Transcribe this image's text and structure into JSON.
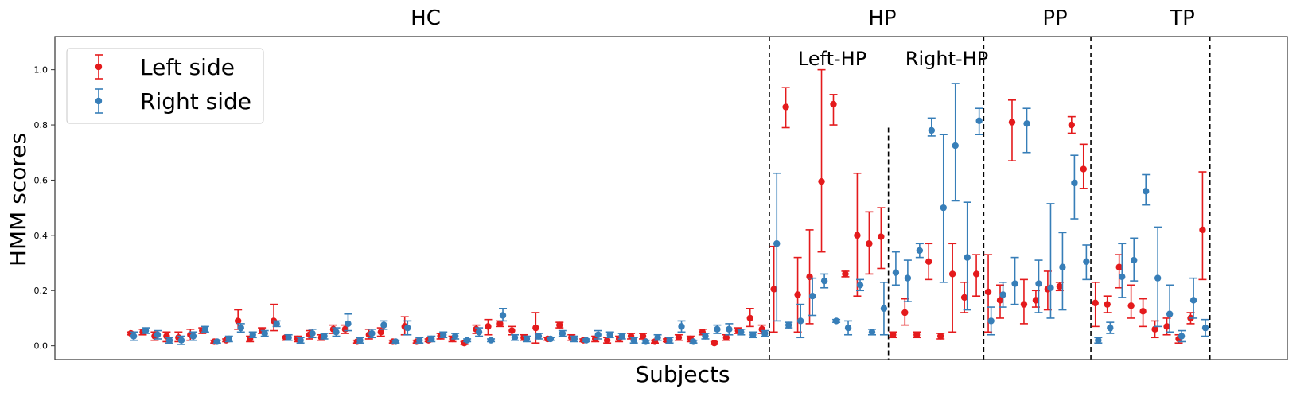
{
  "chart_data": {
    "type": "scatter",
    "title": "",
    "xlabel": "Subjects",
    "ylabel": "HMM scores",
    "ylim": [
      -0.05,
      1.12
    ],
    "yticks": [
      "0.0",
      "0.2",
      "0.4",
      "0.6",
      "0.8",
      "1.0"
    ],
    "grid": false,
    "legend_position": "top-left",
    "group_labels": [
      "HC",
      "HP",
      "PP",
      "TP"
    ],
    "subgroup_labels": [
      "Left-HP",
      "Right-HP"
    ],
    "colors": {
      "left": "#e41a1c",
      "right": "#377eb8"
    },
    "series": [
      {
        "name": "Left side",
        "color": "#e41a1c",
        "points": [
          [
            1,
            0.045,
            0.04,
            0.05
          ],
          [
            2,
            0.05,
            0.04,
            0.06
          ],
          [
            3,
            0.035,
            0.02,
            0.05
          ],
          [
            4,
            0.035,
            0.015,
            0.05
          ],
          [
            5,
            0.03,
            0.015,
            0.05
          ],
          [
            6,
            0.04,
            0.02,
            0.06
          ],
          [
            7,
            0.055,
            0.045,
            0.065
          ],
          [
            8,
            0.015,
            0.01,
            0.02
          ],
          [
            9,
            0.02,
            0.015,
            0.025
          ],
          [
            10,
            0.09,
            0.06,
            0.13
          ],
          [
            11,
            0.025,
            0.015,
            0.035
          ],
          [
            12,
            0.055,
            0.045,
            0.065
          ],
          [
            13,
            0.09,
            0.055,
            0.15
          ],
          [
            14,
            0.03,
            0.02,
            0.035
          ],
          [
            15,
            0.025,
            0.015,
            0.035
          ],
          [
            16,
            0.04,
            0.025,
            0.055
          ],
          [
            17,
            0.03,
            0.02,
            0.04
          ],
          [
            18,
            0.06,
            0.045,
            0.075
          ],
          [
            19,
            0.06,
            0.045,
            0.075
          ],
          [
            20,
            0.015,
            0.01,
            0.02
          ],
          [
            21,
            0.04,
            0.025,
            0.06
          ],
          [
            22,
            0.05,
            0.035,
            0.065
          ],
          [
            23,
            0.015,
            0.01,
            0.02
          ],
          [
            24,
            0.07,
            0.04,
            0.105
          ],
          [
            25,
            0.015,
            0.01,
            0.02
          ],
          [
            26,
            0.02,
            0.015,
            0.025
          ],
          [
            27,
            0.035,
            0.025,
            0.045
          ],
          [
            28,
            0.025,
            0.015,
            0.035
          ],
          [
            29,
            0.01,
            0.005,
            0.015
          ],
          [
            30,
            0.06,
            0.045,
            0.075
          ],
          [
            31,
            0.07,
            0.04,
            0.095
          ],
          [
            32,
            0.08,
            0.07,
            0.09
          ],
          [
            33,
            0.055,
            0.04,
            0.07
          ],
          [
            34,
            0.03,
            0.02,
            0.04
          ],
          [
            35,
            0.065,
            0.01,
            0.12
          ],
          [
            36,
            0.025,
            0.02,
            0.03
          ],
          [
            37,
            0.075,
            0.065,
            0.085
          ],
          [
            38,
            0.03,
            0.02,
            0.04
          ],
          [
            39,
            0.02,
            0.015,
            0.025
          ],
          [
            40,
            0.025,
            0.015,
            0.035
          ],
          [
            41,
            0.02,
            0.01,
            0.03
          ],
          [
            42,
            0.025,
            0.015,
            0.035
          ],
          [
            43,
            0.035,
            0.025,
            0.045
          ],
          [
            44,
            0.035,
            0.025,
            0.045
          ],
          [
            45,
            0.015,
            0.01,
            0.02
          ],
          [
            46,
            0.02,
            0.015,
            0.025
          ],
          [
            47,
            0.03,
            0.02,
            0.04
          ],
          [
            48,
            0.025,
            0.015,
            0.035
          ],
          [
            49,
            0.05,
            0.04,
            0.06
          ],
          [
            50,
            0.01,
            0.005,
            0.015
          ],
          [
            51,
            0.03,
            0.02,
            0.04
          ],
          [
            52,
            0.055,
            0.045,
            0.065
          ],
          [
            53,
            0.1,
            0.07,
            0.135
          ],
          [
            54,
            0.06,
            0.045,
            0.075
          ],
          [
            55,
            0.205,
            0.05,
            0.36
          ],
          [
            56,
            0.865,
            0.79,
            0.935
          ],
          [
            57,
            0.185,
            0.05,
            0.32
          ],
          [
            58,
            0.25,
            0.08,
            0.42
          ],
          [
            59,
            0.595,
            0.34,
            1.0
          ],
          [
            60,
            0.875,
            0.8,
            0.91
          ],
          [
            61,
            0.26,
            0.25,
            0.27
          ],
          [
            62,
            0.4,
            0.18,
            0.625
          ],
          [
            63,
            0.37,
            0.26,
            0.485
          ],
          [
            64,
            0.395,
            0.28,
            0.5
          ],
          [
            65,
            0.04,
            0.03,
            0.05
          ],
          [
            66,
            0.12,
            0.075,
            0.17
          ],
          [
            67,
            0.04,
            0.03,
            0.05
          ],
          [
            68,
            0.305,
            0.24,
            0.37
          ],
          [
            69,
            0.035,
            0.025,
            0.045
          ],
          [
            70,
            0.26,
            0.05,
            0.37
          ],
          [
            71,
            0.175,
            0.12,
            0.23
          ],
          [
            72,
            0.26,
            0.18,
            0.33
          ],
          [
            73,
            0.195,
            0.05,
            0.33
          ],
          [
            74,
            0.165,
            0.1,
            0.22
          ],
          [
            75,
            0.81,
            0.67,
            0.89
          ],
          [
            76,
            0.15,
            0.08,
            0.24
          ],
          [
            77,
            0.165,
            0.14,
            0.2
          ],
          [
            78,
            0.205,
            0.13,
            0.27
          ],
          [
            79,
            0.215,
            0.2,
            0.23
          ],
          [
            80,
            0.8,
            0.77,
            0.83
          ],
          [
            81,
            0.64,
            0.57,
            0.73
          ],
          [
            82,
            0.155,
            0.07,
            0.23
          ],
          [
            83,
            0.15,
            0.12,
            0.18
          ],
          [
            84,
            0.285,
            0.21,
            0.33
          ],
          [
            85,
            0.145,
            0.1,
            0.22
          ],
          [
            86,
            0.125,
            0.07,
            0.17
          ],
          [
            87,
            0.06,
            0.03,
            0.09
          ],
          [
            88,
            0.07,
            0.04,
            0.1
          ],
          [
            89,
            0.025,
            0.01,
            0.04
          ],
          [
            90,
            0.1,
            0.08,
            0.12
          ],
          [
            91,
            0.42,
            0.24,
            0.63
          ]
        ]
      },
      {
        "name": "Right side",
        "color": "#377eb8",
        "points": [
          [
            1,
            0.035,
            0.02,
            0.05
          ],
          [
            2,
            0.055,
            0.045,
            0.065
          ],
          [
            3,
            0.04,
            0.025,
            0.055
          ],
          [
            4,
            0.02,
            0.01,
            0.03
          ],
          [
            5,
            0.02,
            0.005,
            0.035
          ],
          [
            6,
            0.035,
            0.02,
            0.05
          ],
          [
            7,
            0.06,
            0.05,
            0.07
          ],
          [
            8,
            0.015,
            0.01,
            0.02
          ],
          [
            9,
            0.025,
            0.015,
            0.035
          ],
          [
            10,
            0.065,
            0.05,
            0.08
          ],
          [
            11,
            0.04,
            0.03,
            0.05
          ],
          [
            12,
            0.045,
            0.035,
            0.055
          ],
          [
            13,
            0.08,
            0.07,
            0.09
          ],
          [
            14,
            0.03,
            0.02,
            0.04
          ],
          [
            15,
            0.02,
            0.01,
            0.03
          ],
          [
            16,
            0.045,
            0.03,
            0.06
          ],
          [
            17,
            0.035,
            0.025,
            0.045
          ],
          [
            18,
            0.05,
            0.035,
            0.065
          ],
          [
            19,
            0.08,
            0.055,
            0.115
          ],
          [
            20,
            0.02,
            0.01,
            0.03
          ],
          [
            21,
            0.045,
            0.03,
            0.06
          ],
          [
            22,
            0.075,
            0.06,
            0.09
          ],
          [
            23,
            0.015,
            0.01,
            0.02
          ],
          [
            24,
            0.065,
            0.04,
            0.09
          ],
          [
            25,
            0.02,
            0.01,
            0.03
          ],
          [
            26,
            0.025,
            0.015,
            0.035
          ],
          [
            27,
            0.04,
            0.03,
            0.05
          ],
          [
            28,
            0.035,
            0.025,
            0.045
          ],
          [
            29,
            0.02,
            0.015,
            0.025
          ],
          [
            30,
            0.05,
            0.035,
            0.065
          ],
          [
            31,
            0.02,
            0.015,
            0.025
          ],
          [
            32,
            0.11,
            0.09,
            0.135
          ],
          [
            33,
            0.03,
            0.02,
            0.04
          ],
          [
            34,
            0.025,
            0.015,
            0.035
          ],
          [
            35,
            0.035,
            0.025,
            0.045
          ],
          [
            36,
            0.025,
            0.02,
            0.03
          ],
          [
            37,
            0.045,
            0.035,
            0.055
          ],
          [
            38,
            0.025,
            0.015,
            0.035
          ],
          [
            39,
            0.02,
            0.015,
            0.025
          ],
          [
            40,
            0.04,
            0.025,
            0.055
          ],
          [
            41,
            0.04,
            0.03,
            0.05
          ],
          [
            42,
            0.035,
            0.025,
            0.045
          ],
          [
            43,
            0.02,
            0.01,
            0.03
          ],
          [
            44,
            0.015,
            0.01,
            0.02
          ],
          [
            45,
            0.03,
            0.02,
            0.04
          ],
          [
            46,
            0.02,
            0.01,
            0.03
          ],
          [
            47,
            0.07,
            0.05,
            0.09
          ],
          [
            48,
            0.015,
            0.01,
            0.02
          ],
          [
            49,
            0.035,
            0.025,
            0.045
          ],
          [
            50,
            0.06,
            0.045,
            0.075
          ],
          [
            51,
            0.06,
            0.04,
            0.08
          ],
          [
            52,
            0.05,
            0.04,
            0.06
          ],
          [
            53,
            0.04,
            0.03,
            0.05
          ],
          [
            54,
            0.045,
            0.035,
            0.055
          ],
          [
            55,
            0.37,
            0.09,
            0.625
          ],
          [
            56,
            0.075,
            0.065,
            0.085
          ],
          [
            57,
            0.09,
            0.03,
            0.15
          ],
          [
            58,
            0.18,
            0.11,
            0.245
          ],
          [
            59,
            0.235,
            0.21,
            0.26
          ],
          [
            60,
            0.09,
            0.085,
            0.095
          ],
          [
            61,
            0.065,
            0.04,
            0.09
          ],
          [
            62,
            0.22,
            0.2,
            0.24
          ],
          [
            63,
            0.05,
            0.04,
            0.06
          ],
          [
            64,
            0.135,
            0.04,
            0.23
          ],
          [
            65,
            0.265,
            0.22,
            0.34
          ],
          [
            66,
            0.245,
            0.16,
            0.31
          ],
          [
            67,
            0.345,
            0.32,
            0.37
          ],
          [
            68,
            0.78,
            0.76,
            0.825
          ],
          [
            69,
            0.5,
            0.23,
            0.765
          ],
          [
            70,
            0.725,
            0.525,
            0.95
          ],
          [
            71,
            0.32,
            0.13,
            0.52
          ],
          [
            72,
            0.815,
            0.765,
            0.86
          ],
          [
            73,
            0.09,
            0.04,
            0.14
          ],
          [
            74,
            0.185,
            0.14,
            0.23
          ],
          [
            75,
            0.225,
            0.15,
            0.32
          ],
          [
            76,
            0.805,
            0.7,
            0.86
          ],
          [
            77,
            0.225,
            0.12,
            0.31
          ],
          [
            78,
            0.21,
            0.1,
            0.515
          ],
          [
            79,
            0.285,
            0.13,
            0.41
          ],
          [
            80,
            0.59,
            0.46,
            0.69
          ],
          [
            81,
            0.305,
            0.24,
            0.365
          ],
          [
            82,
            0.02,
            0.01,
            0.03
          ],
          [
            83,
            0.065,
            0.045,
            0.085
          ],
          [
            84,
            0.25,
            0.175,
            0.37
          ],
          [
            85,
            0.31,
            0.235,
            0.39
          ],
          [
            86,
            0.56,
            0.51,
            0.62
          ],
          [
            87,
            0.245,
            0.07,
            0.43
          ],
          [
            88,
            0.115,
            0.05,
            0.22
          ],
          [
            89,
            0.035,
            0.015,
            0.055
          ],
          [
            90,
            0.165,
            0.1,
            0.245
          ],
          [
            91,
            0.065,
            0.035,
            0.095
          ]
        ]
      }
    ],
    "xlim": [
      -5.5,
      98
    ],
    "group_boundaries": [
      54.5,
      72.5,
      81.5,
      91.5
    ],
    "subgroup_boundary": 64.5,
    "subgroup_boundary_ymax": 0.79
  }
}
